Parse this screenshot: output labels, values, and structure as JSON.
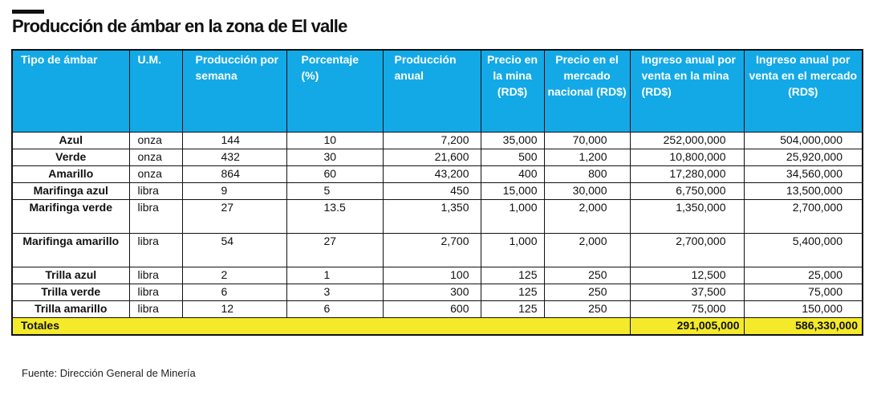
{
  "header": {
    "title": "Producción de ámbar en la zona de El valle"
  },
  "table": {
    "columns": [
      "Tipo de ámbar",
      "U.M.",
      "Producción por semana",
      "Porcentaje (%)",
      "Producción anual",
      "Precio en la mina (RD$)",
      "Precio en el mercado nacional (RD$)",
      "Ingreso anual por venta en la mina (RD$)",
      "Ingreso anual por venta en el mercado (RD$)"
    ],
    "rows": [
      [
        "Azul",
        "onza",
        "144",
        "10",
        "7,200",
        "35,000",
        "70,000",
        "252,000,000",
        "504,000,000"
      ],
      [
        "Verde",
        "onza",
        "432",
        "30",
        "21,600",
        "500",
        "1,200",
        "10,800,000",
        "25,920,000"
      ],
      [
        "Amarillo",
        "onza",
        "864",
        "60",
        "43,200",
        "400",
        "800",
        "17,280,000",
        "34,560,000"
      ],
      [
        "Marifinga azul",
        "libra",
        "9",
        "5",
        "450",
        "15,000",
        "30,000",
        "6,750,000",
        "13,500,000"
      ],
      [
        "Marifinga verde",
        "libra",
        "27",
        "13.5",
        "1,350",
        "1,000",
        "2,000",
        "1,350,000",
        "2,700,000"
      ],
      [
        "Marifinga amarillo",
        "libra",
        "54",
        "27",
        "2,700",
        "1,000",
        "2,000",
        "2,700,000",
        "5,400,000"
      ],
      [
        "Trilla azul",
        "libra",
        "2",
        "1",
        "100",
        "125",
        "250",
        "12,500",
        "25,000"
      ],
      [
        "Trilla verde",
        "libra",
        "6",
        "3",
        "300",
        "125",
        "250",
        "37,500",
        "75,000"
      ],
      [
        "Trilla amarillo",
        "libra",
        "12",
        "6",
        "600",
        "125",
        "250",
        "75,000",
        "150,000"
      ]
    ],
    "totals": {
      "label": "Totales",
      "ingreso_mina": "291,005,000",
      "ingreso_mercado": "586,330,000"
    }
  },
  "footer": {
    "source": "Fuente: Dirección General de Minería"
  },
  "colors": {
    "header_bg": "#13a9e6",
    "totals_bg": "#f4ea2a"
  }
}
